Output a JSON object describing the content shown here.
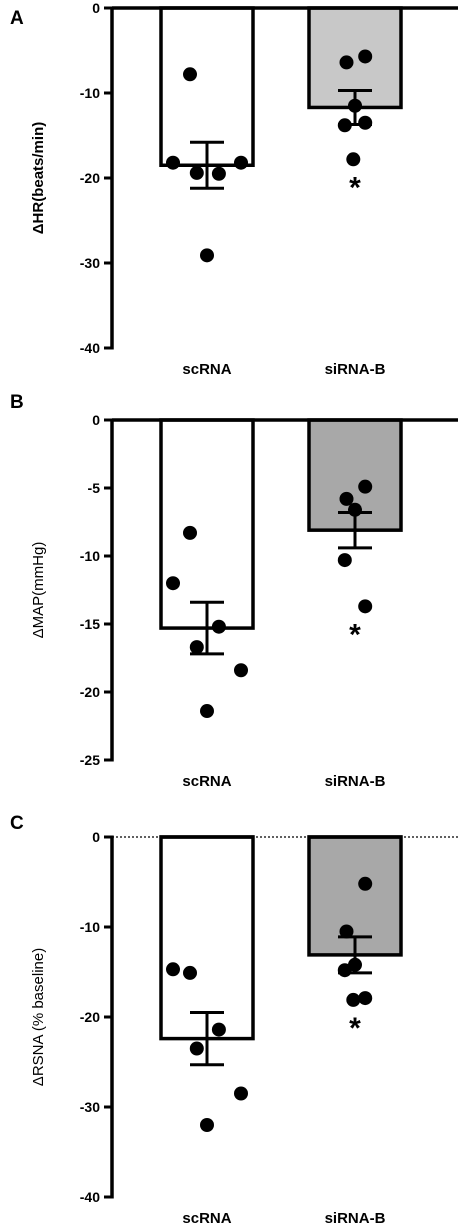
{
  "chart_data": [
    {
      "type": "bar",
      "panel_label": "A",
      "ylabel": "ΔHR(beats/min)",
      "ylabel_bold": true,
      "categories": [
        "scRNA",
        "siRNA-B"
      ],
      "ylim": [
        -40,
        0
      ],
      "yticks": [
        0,
        -10,
        -20,
        -30,
        -40
      ],
      "dotted_zero": false,
      "series": [
        {
          "values": [
            -18.5,
            -11.7
          ],
          "errors": [
            2.7,
            2.0
          ],
          "fills": [
            "#ffffff",
            "#c8c8c8"
          ]
        }
      ],
      "points": [
        [
          -7.8,
          -18.2,
          -19.5,
          -19.4,
          -18.2,
          -29.1
        ],
        [
          -5.7,
          -6.4,
          -11.5,
          -13.8,
          -13.5,
          -17.8
        ]
      ],
      "significance": [
        "",
        "*"
      ]
    },
    {
      "type": "bar",
      "panel_label": "B",
      "ylabel": "ΔMAP(mmHg)",
      "ylabel_bold": false,
      "categories": [
        "scRNA",
        "siRNA-B"
      ],
      "ylim": [
        -25,
        0
      ],
      "yticks": [
        0,
        -5,
        -10,
        -15,
        -20,
        -25
      ],
      "dotted_zero": false,
      "series": [
        {
          "values": [
            -15.3,
            -8.1
          ],
          "errors": [
            1.9,
            1.3
          ],
          "fills": [
            "#ffffff",
            "#a8a8a8"
          ]
        }
      ],
      "points": [
        [
          -8.3,
          -12.0,
          -15.2,
          -16.7,
          -18.4,
          -21.4
        ],
        [
          -4.9,
          -5.8,
          -6.6,
          -10.3,
          -13.7
        ]
      ],
      "significance": [
        "",
        "*"
      ]
    },
    {
      "type": "bar",
      "panel_label": "C",
      "ylabel": "ΔRSNA (% baseline)",
      "ylabel_bold": false,
      "categories": [
        "scRNA",
        "siRNA-B"
      ],
      "ylim": [
        -40,
        0
      ],
      "yticks": [
        0,
        -10,
        -20,
        -30,
        -40
      ],
      "dotted_zero": true,
      "series": [
        {
          "values": [
            -22.4,
            -13.1
          ],
          "errors": [
            2.9,
            2.0
          ],
          "fills": [
            "#ffffff",
            "#a8a8a8"
          ]
        }
      ],
      "points": [
        [
          -15.1,
          -14.7,
          -21.4,
          -23.5,
          -28.5,
          -32.0
        ],
        [
          -5.2,
          -10.5,
          -14.2,
          -14.8,
          -17.9,
          -18.1
        ]
      ],
      "significance": [
        "",
        "*"
      ]
    }
  ]
}
